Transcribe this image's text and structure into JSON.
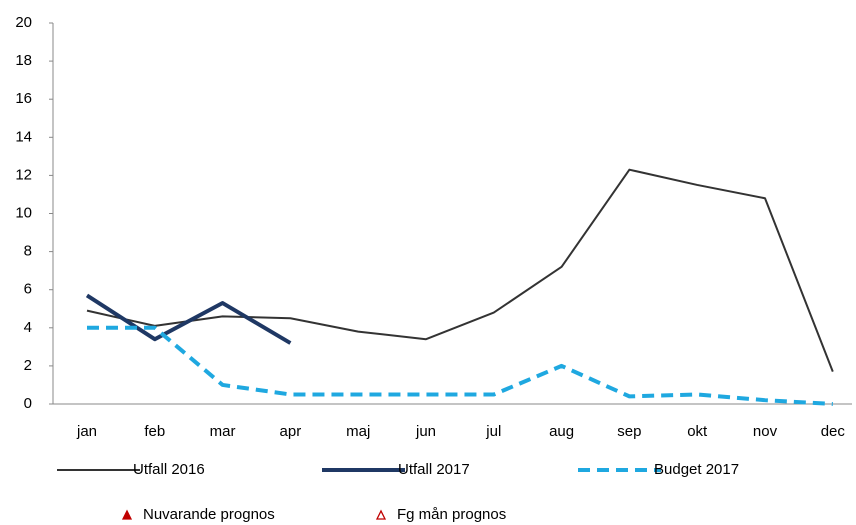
{
  "chart_data": {
    "type": "line",
    "categories": [
      "jan",
      "feb",
      "mar",
      "apr",
      "maj",
      "jun",
      "jul",
      "aug",
      "sep",
      "okt",
      "nov",
      "dec"
    ],
    "series": [
      {
        "name": "Utfall 2016",
        "color": "#333333",
        "width": 2,
        "dash": false,
        "values": [
          4.9,
          4.1,
          4.6,
          4.5,
          3.8,
          3.4,
          4.8,
          7.2,
          12.3,
          11.5,
          10.8,
          1.7
        ]
      },
      {
        "name": "Utfall 2017",
        "color": "#1f3864",
        "width": 4,
        "dash": false,
        "values": [
          5.7,
          3.4,
          5.3,
          3.2,
          null,
          null,
          null,
          null,
          null,
          null,
          null,
          null
        ]
      },
      {
        "name": "Budget 2017",
        "color": "#1fa8e0",
        "width": 4,
        "dash": true,
        "values": [
          4,
          4,
          1,
          0.5,
          0.5,
          0.5,
          0.5,
          2,
          0.4,
          0.5,
          0.2,
          0
        ]
      },
      {
        "name": "Nuvarande prognos",
        "color": "#c00000",
        "marker": "triangle-filled",
        "values": [
          null,
          null,
          null,
          null,
          null,
          null,
          null,
          null,
          null,
          null,
          null,
          null
        ]
      },
      {
        "name": "Fg mån prognos",
        "color": "#c00000",
        "marker": "triangle-open",
        "values": [
          null,
          null,
          null,
          null,
          null,
          null,
          null,
          null,
          null,
          null,
          null,
          null
        ]
      }
    ],
    "ylim": [
      0,
      20
    ],
    "yticks": [
      0,
      2,
      4,
      6,
      8,
      10,
      12,
      14,
      16,
      18,
      20
    ],
    "grid": false
  }
}
